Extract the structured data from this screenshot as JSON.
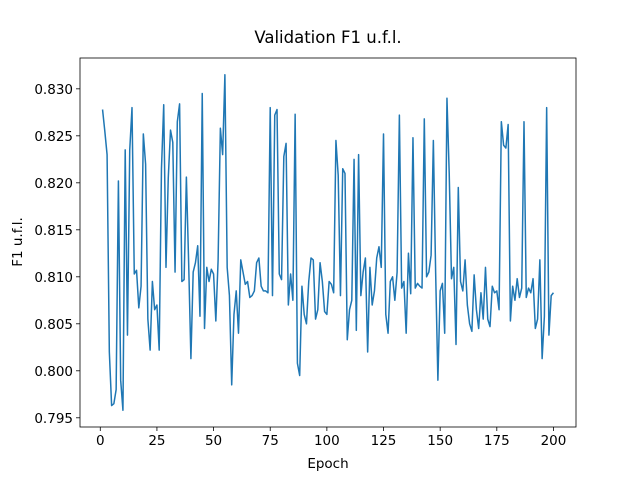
{
  "chart_data": {
    "type": "line",
    "title": "Validation F1 u.f.l.",
    "xlabel": "Epoch",
    "ylabel": "F1 u.f.l.",
    "x": [
      1,
      2,
      3,
      4,
      5,
      6,
      7,
      8,
      9,
      10,
      11,
      12,
      13,
      14,
      15,
      16,
      17,
      18,
      19,
      20,
      21,
      22,
      23,
      24,
      25,
      26,
      27,
      28,
      29,
      30,
      31,
      32,
      33,
      34,
      35,
      36,
      37,
      38,
      39,
      40,
      41,
      42,
      43,
      44,
      45,
      46,
      47,
      48,
      49,
      50,
      51,
      52,
      53,
      54,
      55,
      56,
      57,
      58,
      59,
      60,
      61,
      62,
      63,
      64,
      65,
      66,
      67,
      68,
      69,
      70,
      71,
      72,
      73,
      74,
      75,
      76,
      77,
      78,
      79,
      80,
      81,
      82,
      83,
      84,
      85,
      86,
      87,
      88,
      89,
      90,
      91,
      92,
      93,
      94,
      95,
      96,
      97,
      98,
      99,
      100,
      101,
      102,
      103,
      104,
      105,
      106,
      107,
      108,
      109,
      110,
      111,
      112,
      113,
      114,
      115,
      116,
      117,
      118,
      119,
      120,
      121,
      122,
      123,
      124,
      125,
      126,
      127,
      128,
      129,
      130,
      131,
      132,
      133,
      134,
      135,
      136,
      137,
      138,
      139,
      140,
      141,
      142,
      143,
      144,
      145,
      146,
      147,
      148,
      149,
      150,
      151,
      152,
      153,
      154,
      155,
      156,
      157,
      158,
      159,
      160,
      161,
      162,
      163,
      164,
      165,
      166,
      167,
      168,
      169,
      170,
      171,
      172,
      173,
      174,
      175,
      176,
      177,
      178,
      179,
      180,
      181,
      182,
      183,
      184,
      185,
      186,
      187,
      188,
      189,
      190,
      191,
      192,
      193,
      194,
      195,
      196,
      197,
      198,
      199,
      200
    ],
    "series": [
      {
        "name": "F1 u.f.l.",
        "color": "#1f77b4",
        "values": [
          0.8278,
          0.8255,
          0.823,
          0.802,
          0.7963,
          0.7965,
          0.798,
          0.8202,
          0.799,
          0.7958,
          0.8235,
          0.8038,
          0.8235,
          0.828,
          0.8103,
          0.8107,
          0.8067,
          0.809,
          0.8252,
          0.822,
          0.8055,
          0.8022,
          0.8095,
          0.8065,
          0.807,
          0.8022,
          0.8215,
          0.8283,
          0.811,
          0.8205,
          0.8256,
          0.8243,
          0.8105,
          0.8265,
          0.8284,
          0.8095,
          0.8097,
          0.8206,
          0.8115,
          0.8013,
          0.8105,
          0.8115,
          0.8133,
          0.8058,
          0.8295,
          0.8045,
          0.811,
          0.8095,
          0.8108,
          0.8103,
          0.8053,
          0.8118,
          0.8258,
          0.823,
          0.8315,
          0.811,
          0.808,
          0.7985,
          0.806,
          0.8085,
          0.804,
          0.8118,
          0.8105,
          0.8092,
          0.8095,
          0.8078,
          0.808,
          0.8085,
          0.8115,
          0.812,
          0.809,
          0.8085,
          0.8085,
          0.8083,
          0.828,
          0.808,
          0.8272,
          0.8278,
          0.8103,
          0.8097,
          0.8228,
          0.8242,
          0.807,
          0.8103,
          0.8075,
          0.8273,
          0.8008,
          0.7995,
          0.809,
          0.806,
          0.805,
          0.8095,
          0.812,
          0.8118,
          0.8055,
          0.8065,
          0.8115,
          0.8095,
          0.8063,
          0.806,
          0.8095,
          0.8092,
          0.8083,
          0.8245,
          0.8208,
          0.808,
          0.8215,
          0.821,
          0.8033,
          0.8065,
          0.8075,
          0.8225,
          0.8043,
          0.823,
          0.808,
          0.8105,
          0.812,
          0.802,
          0.811,
          0.807,
          0.8085,
          0.812,
          0.8132,
          0.811,
          0.8252,
          0.806,
          0.804,
          0.8095,
          0.81,
          0.8075,
          0.8105,
          0.8272,
          0.8088,
          0.8095,
          0.804,
          0.8125,
          0.8082,
          0.8248,
          0.8088,
          0.8093,
          0.809,
          0.8088,
          0.8268,
          0.81,
          0.8105,
          0.8123,
          0.8245,
          0.8105,
          0.799,
          0.8085,
          0.8093,
          0.804,
          0.829,
          0.821,
          0.8098,
          0.811,
          0.8028,
          0.8195,
          0.8095,
          0.8085,
          0.8118,
          0.807,
          0.805,
          0.8042,
          0.8102,
          0.8065,
          0.8045,
          0.8083,
          0.8055,
          0.811,
          0.8055,
          0.8047,
          0.809,
          0.8083,
          0.8085,
          0.8065,
          0.8265,
          0.824,
          0.8237,
          0.8262,
          0.8053,
          0.809,
          0.8075,
          0.8098,
          0.8078,
          0.8088,
          0.8265,
          0.8078,
          0.8088,
          0.8083,
          0.8098,
          0.8045,
          0.8055,
          0.8118,
          0.8013,
          0.8058,
          0.828,
          0.8038,
          0.808,
          0.8083
        ]
      }
    ],
    "xlim": [
      -8.95,
      209.95
    ],
    "xticks": [
      0,
      25,
      50,
      75,
      100,
      125,
      150,
      175,
      200
    ],
    "ylim": [
      0.79402,
      0.83328
    ],
    "yticks": [
      0.795,
      {
        "value": 0.8,
        "label": "0.800"
      },
      0.805,
      {
        "value": 0.81,
        "label": "0.810"
      },
      0.815,
      {
        "value": 0.82,
        "label": "0.820"
      },
      0.825,
      {
        "value": 0.83,
        "label": "0.830"
      }
    ],
    "grid": false
  }
}
